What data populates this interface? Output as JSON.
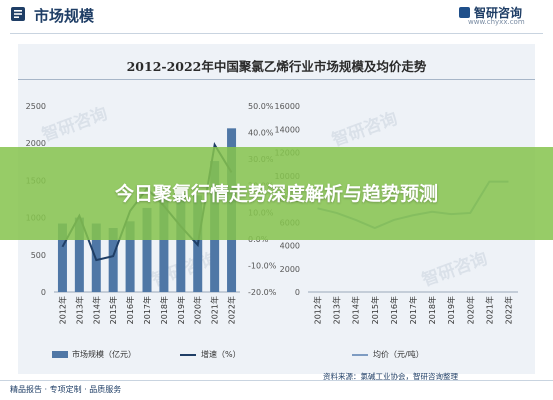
{
  "header": {
    "title": "市场规模",
    "brand": "智研咨询",
    "site": "www.chyxx.com"
  },
  "banner": {
    "text": "今日聚氯行情走势深度解析与趋势预测"
  },
  "watermark": "智研咨询",
  "footer": {
    "left": "精品报告 · 专项定制 · 品质服务",
    "source": "资料来源：氯碱工业协会，智研咨询整理"
  },
  "colors": {
    "bar": "#4f77a6",
    "growth_line": "#1f3e66",
    "price_line": "#7e9cc2",
    "banner": "#86c44e"
  },
  "chart_data": {
    "title": "2012-2022年中国聚氯乙烯行业市场规模及均价走势",
    "charts": [
      {
        "type": "bar+line",
        "categories": [
          "2012年",
          "2013年",
          "2014年",
          "2015年",
          "2016年",
          "2017年",
          "2018年",
          "2019年",
          "2020年",
          "2021年",
          "2022年"
        ],
        "bar_series": {
          "name": "市场规模（亿元）",
          "values": [
            920,
            1000,
            920,
            860,
            950,
            1130,
            1270,
            1330,
            1300,
            1760,
            2200
          ]
        },
        "line_series": {
          "name": "增速（%）",
          "values": [
            -3.0,
            8.7,
            -8.0,
            -6.5,
            10.5,
            18.9,
            12.4,
            4.7,
            -2.3,
            35.4,
            25.0
          ]
        },
        "left_axis": {
          "ylim": [
            0,
            2500
          ],
          "ticks": [
            "0",
            "500",
            "1000",
            "1500",
            "2000",
            "2500"
          ]
        },
        "right_axis": {
          "ylim": [
            -20,
            50
          ],
          "ticks": [
            "-20.0%",
            "-10.0%",
            "0.0%",
            "10.0%",
            "20.0%",
            "30.0%",
            "40.0%",
            "50.0%"
          ]
        },
        "legend": "bottom"
      },
      {
        "type": "line",
        "categories": [
          "2012年",
          "2013年",
          "2014年",
          "2015年",
          "2016年",
          "2017年",
          "2018年",
          "2019年",
          "2020年",
          "2021年",
          "2022年"
        ],
        "series": [
          {
            "name": "均价（元/吨）",
            "values": [
              7200,
              6800,
              6200,
              5500,
              6200,
              6600,
              6900,
              6700,
              6800,
              9500,
              9500
            ]
          }
        ],
        "ylim": [
          0,
          16000
        ],
        "ticks": [
          "0",
          "2000",
          "4000",
          "6000",
          "8000",
          "10000",
          "12000",
          "14000",
          "16000"
        ],
        "legend": "bottom"
      }
    ]
  }
}
